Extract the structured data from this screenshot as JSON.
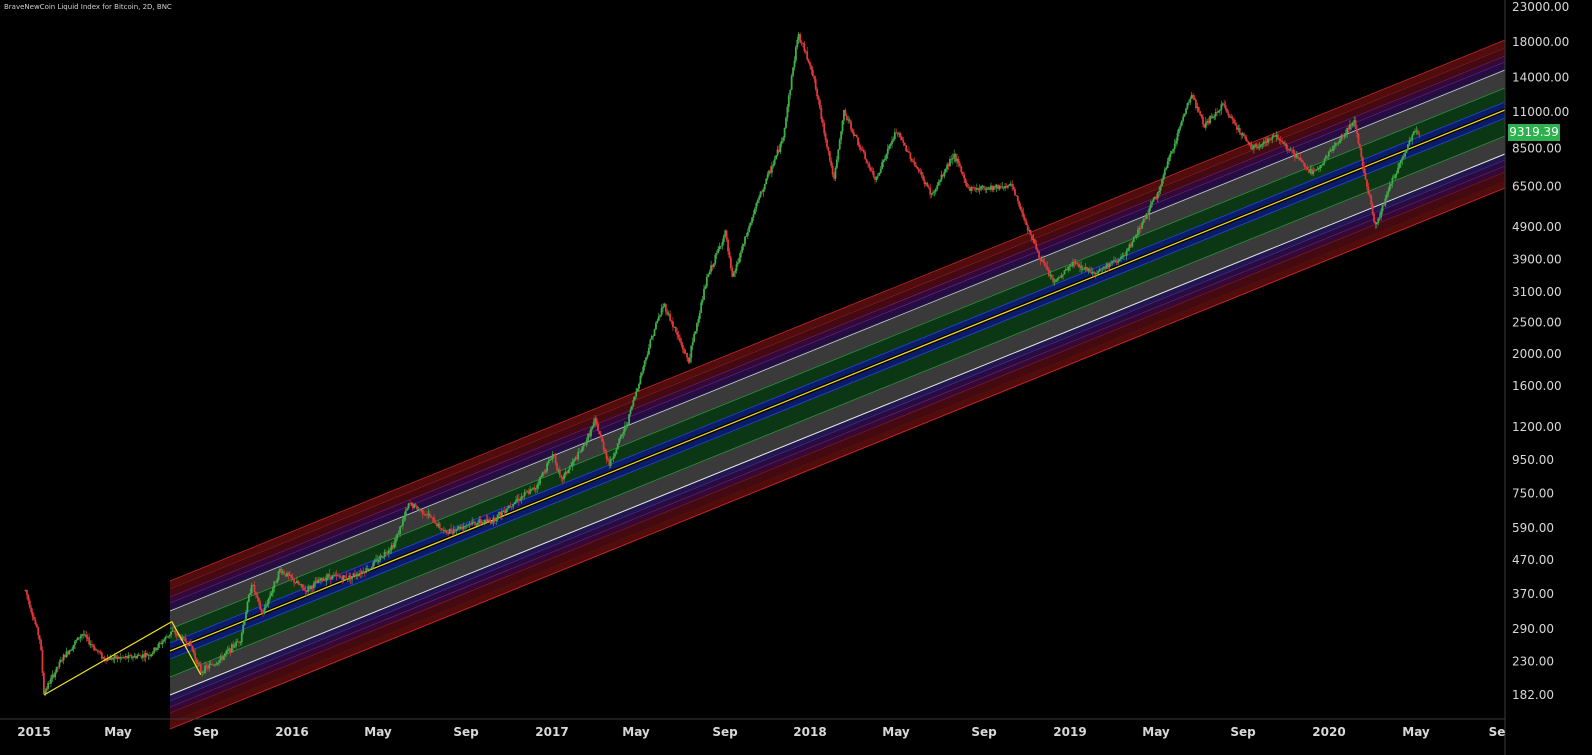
{
  "title": "BraveNewCoin Liquid Index for Bitcoin, 2D, BNC",
  "last_price": "9319.39",
  "colors": {
    "background": "#000000",
    "up": "#3fae49",
    "down": "#e0383b",
    "center_line": "#f2d21b",
    "pitch_line": "#f2e21e",
    "price_badge": "#2bb24c"
  },
  "chart_data": {
    "type": "candlestick",
    "y_scale": "log",
    "ylim": [
      160,
      23000
    ],
    "y_ticks": [
      "23000.00",
      "18000.00",
      "14000.00",
      "11000.00",
      "8500.00",
      "6500.00",
      "4900.00",
      "3900.00",
      "3100.00",
      "2500.00",
      "2000.00",
      "1600.00",
      "1200.00",
      "950.00",
      "750.00",
      "590.00",
      "470.00",
      "370.00",
      "290.00",
      "230.00",
      "182.00"
    ],
    "x_ticks": [
      "2015",
      "May",
      "Sep",
      "2016",
      "May",
      "Sep",
      "2017",
      "May",
      "Sep",
      "2018",
      "May",
      "Sep",
      "2019",
      "May",
      "Sep",
      "2020",
      "May",
      "Se"
    ],
    "price_path": [
      [
        "2014-12-20",
        380
      ],
      [
        "2015-01-10",
        265
      ],
      [
        "2015-01-15",
        185
      ],
      [
        "2015-02-10",
        235
      ],
      [
        "2015-03-10",
        280
      ],
      [
        "2015-04-10",
        235
      ],
      [
        "2015-05-15",
        237
      ],
      [
        "2015-06-15",
        243
      ],
      [
        "2015-07-15",
        285
      ],
      [
        "2015-08-10",
        260
      ],
      [
        "2015-08-25",
        215
      ],
      [
        "2015-09-20",
        232
      ],
      [
        "2015-10-20",
        270
      ],
      [
        "2015-11-05",
        400
      ],
      [
        "2015-11-20",
        320
      ],
      [
        "2015-12-15",
        440
      ],
      [
        "2016-01-20",
        380
      ],
      [
        "2016-02-20",
        420
      ],
      [
        "2016-03-20",
        415
      ],
      [
        "2016-04-20",
        445
      ],
      [
        "2016-05-25",
        530
      ],
      [
        "2016-06-15",
        700
      ],
      [
        "2016-07-10",
        650
      ],
      [
        "2016-08-05",
        570
      ],
      [
        "2016-09-10",
        610
      ],
      [
        "2016-10-10",
        620
      ],
      [
        "2016-11-10",
        710
      ],
      [
        "2016-12-10",
        780
      ],
      [
        "2017-01-05",
        1000
      ],
      [
        "2017-01-15",
        820
      ],
      [
        "2017-02-15",
        1030
      ],
      [
        "2017-03-05",
        1250
      ],
      [
        "2017-03-25",
        920
      ],
      [
        "2017-04-20",
        1250
      ],
      [
        "2017-05-25",
        2300
      ],
      [
        "2017-06-10",
        2850
      ],
      [
        "2017-07-15",
        1900
      ],
      [
        "2017-08-10",
        3400
      ],
      [
        "2017-09-05",
        4700
      ],
      [
        "2017-09-15",
        3400
      ],
      [
        "2017-10-20",
        5800
      ],
      [
        "2017-11-25",
        9000
      ],
      [
        "2017-12-17",
        19000
      ],
      [
        "2018-01-05",
        15000
      ],
      [
        "2018-02-06",
        6800
      ],
      [
        "2018-02-20",
        11000
      ],
      [
        "2018-04-05",
        6800
      ],
      [
        "2018-05-05",
        9600
      ],
      [
        "2018-06-25",
        6100
      ],
      [
        "2018-07-25",
        8200
      ],
      [
        "2018-08-15",
        6400
      ],
      [
        "2018-10-15",
        6550
      ],
      [
        "2018-11-25",
        3900
      ],
      [
        "2018-12-15",
        3300
      ],
      [
        "2019-01-10",
        3800
      ],
      [
        "2019-02-10",
        3550
      ],
      [
        "2019-03-25",
        4000
      ],
      [
        "2019-05-10",
        6200
      ],
      [
        "2019-06-26",
        12500
      ],
      [
        "2019-07-15",
        10000
      ],
      [
        "2019-08-10",
        11500
      ],
      [
        "2019-09-20",
        8500
      ],
      [
        "2019-10-25",
        9300
      ],
      [
        "2019-12-15",
        7100
      ],
      [
        "2020-02-12",
        10300
      ],
      [
        "2020-03-13",
        4900
      ],
      [
        "2020-04-01",
        6400
      ],
      [
        "2020-05-08",
        9800
      ],
      [
        "2020-05-14",
        9319.39
      ]
    ],
    "annotations": [
      {
        "type": "pitchfork_line",
        "points": [
          [
            "2015-01-15",
            182
          ],
          [
            "2015-07-15",
            305
          ],
          [
            "2015-08-25",
            210
          ]
        ]
      },
      {
        "type": "regression_band",
        "center_line": "yellow",
        "bands": [
          "green",
          "gray",
          "blue",
          "purple",
          "red"
        ]
      }
    ]
  }
}
